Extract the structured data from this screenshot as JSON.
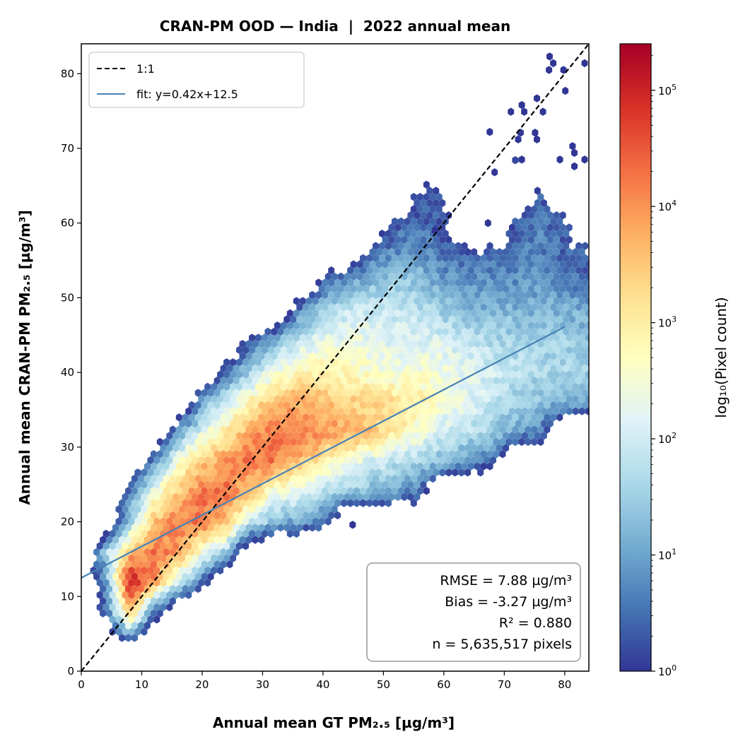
{
  "chart_data": {
    "type": "heatmap",
    "subtype": "hexbin",
    "title": "CRAN-PM OOD — India  |  2022 annual mean",
    "xlabel": "Annual mean GT PM₂.₅ [µg/m³]",
    "ylabel": "Annual mean CRAN-PM PM₂.₅ [µg/m³]",
    "xlim": [
      0,
      84
    ],
    "ylim": [
      0,
      84
    ],
    "xticks": [
      0,
      10,
      20,
      30,
      40,
      50,
      60,
      70,
      80
    ],
    "yticks": [
      0,
      10,
      20,
      30,
      40,
      50,
      60,
      70,
      80
    ],
    "grid": false,
    "colormap": [
      "#313695",
      "#4575b4",
      "#74add1",
      "#abd9e9",
      "#e0f3f8",
      "#ffffbf",
      "#fee090",
      "#fdae61",
      "#f46d43",
      "#d73027",
      "#a50026"
    ],
    "colorbar": {
      "label": "log₁₀(Pixel count)",
      "scale": "log",
      "range_log10": [
        0,
        5.4
      ],
      "tick_base": "10",
      "tick_exponents": [
        "0",
        "1",
        "2",
        "3",
        "4",
        "5"
      ]
    },
    "density_grid": {
      "description_units": "log10 pixel count at grid points (null = empty)",
      "x": [
        4,
        8,
        12,
        16,
        20,
        24,
        28,
        32,
        36,
        40,
        44,
        48,
        52,
        56,
        60,
        64,
        68,
        72,
        76,
        80,
        84
      ],
      "y": [
        4,
        8,
        12,
        16,
        20,
        24,
        28,
        32,
        36,
        40,
        44,
        48,
        52,
        56,
        60,
        64,
        68
      ],
      "log10_counts": [
        [
          null,
          0.3,
          null,
          null,
          null,
          null,
          null,
          null,
          null,
          null,
          null,
          null,
          null,
          null,
          null,
          null,
          null,
          null,
          null,
          null,
          null
        ],
        [
          0.5,
          3.8,
          0.6,
          null,
          null,
          null,
          null,
          null,
          null,
          null,
          null,
          null,
          null,
          null,
          null,
          null,
          null,
          null,
          null,
          null,
          null
        ],
        [
          0.8,
          5.2,
          4.0,
          2.0,
          0.5,
          null,
          null,
          null,
          null,
          null,
          null,
          null,
          null,
          null,
          null,
          null,
          null,
          null,
          null,
          null,
          null
        ],
        [
          1.5,
          3.5,
          4.3,
          4.0,
          2.5,
          1.5,
          null,
          null,
          null,
          null,
          null,
          null,
          null,
          null,
          null,
          null,
          null,
          null,
          null,
          null,
          null
        ],
        [
          null,
          1.5,
          3.5,
          4.2,
          4.3,
          3.5,
          2.0,
          1.2,
          1.0,
          0.5,
          null,
          null,
          null,
          null,
          null,
          null,
          null,
          null,
          null,
          null,
          null
        ],
        [
          null,
          0.5,
          2.5,
          3.5,
          4.2,
          4.3,
          3.5,
          2.5,
          2.2,
          1.8,
          1.5,
          1.2,
          1.0,
          0.5,
          null,
          null,
          null,
          null,
          null,
          null,
          null
        ],
        [
          null,
          null,
          0.8,
          2.5,
          3.5,
          4.0,
          4.3,
          4.2,
          3.6,
          3.0,
          2.5,
          2.0,
          1.8,
          1.5,
          1.2,
          0.8,
          0.4,
          null,
          null,
          null,
          null
        ],
        [
          null,
          null,
          null,
          1.0,
          2.2,
          3.0,
          3.8,
          4.3,
          4.3,
          4.0,
          3.8,
          3.5,
          3.0,
          2.5,
          2.0,
          1.8,
          1.5,
          1.0,
          0.6,
          null,
          null
        ],
        [
          null,
          null,
          null,
          null,
          1.0,
          2.0,
          3.0,
          3.6,
          3.8,
          3.6,
          3.4,
          3.3,
          3.2,
          3.0,
          2.5,
          2.2,
          1.8,
          1.5,
          1.3,
          1.2,
          1.0
        ],
        [
          null,
          null,
          null,
          null,
          null,
          0.6,
          1.5,
          2.5,
          2.8,
          3.0,
          2.8,
          2.6,
          2.5,
          2.5,
          2.4,
          2.2,
          2.0,
          1.8,
          1.6,
          1.6,
          1.5
        ],
        [
          null,
          null,
          null,
          null,
          null,
          null,
          0.5,
          1.2,
          2.0,
          2.3,
          2.4,
          2.3,
          2.2,
          2.2,
          2.1,
          1.9,
          1.7,
          1.6,
          1.6,
          1.5,
          1.4
        ],
        [
          null,
          null,
          null,
          null,
          null,
          null,
          null,
          null,
          0.8,
          1.5,
          1.9,
          2.0,
          1.9,
          1.8,
          1.5,
          1.3,
          1.2,
          1.2,
          1.2,
          1.2,
          1.0
        ],
        [
          null,
          null,
          null,
          null,
          null,
          null,
          null,
          null,
          null,
          0.4,
          1.0,
          1.3,
          1.5,
          1.3,
          1.0,
          0.8,
          0.8,
          0.8,
          0.9,
          0.7,
          0.5
        ],
        [
          null,
          null,
          null,
          null,
          null,
          null,
          null,
          null,
          null,
          null,
          null,
          0.5,
          0.8,
          0.9,
          0.5,
          0.3,
          0.4,
          0.6,
          0.7,
          0.4,
          0.3
        ],
        [
          null,
          null,
          null,
          null,
          null,
          null,
          null,
          null,
          null,
          null,
          null,
          null,
          0.3,
          0.5,
          0.2,
          null,
          null,
          0.3,
          0.6,
          0.3,
          null
        ],
        [
          null,
          null,
          null,
          null,
          null,
          null,
          null,
          null,
          null,
          null,
          null,
          null,
          null,
          0.2,
          0.2,
          null,
          null,
          null,
          0.3,
          null,
          null
        ],
        [
          null,
          null,
          null,
          null,
          null,
          null,
          null,
          null,
          null,
          null,
          null,
          null,
          null,
          null,
          null,
          null,
          null,
          0.1,
          null,
          null,
          null
        ]
      ]
    },
    "sparse_bins_count1": [
      [
        77.5,
        82.3
      ],
      [
        78.1,
        81.4
      ],
      [
        77.4,
        80.5
      ],
      [
        79.8,
        80.5
      ],
      [
        83.3,
        81.4
      ],
      [
        80.1,
        77.7
      ],
      [
        75.4,
        76.7
      ],
      [
        76.4,
        74.9
      ],
      [
        72.9,
        75.8
      ],
      [
        73.3,
        74.9
      ],
      [
        71.1,
        74.9
      ],
      [
        67.6,
        72.2
      ],
      [
        72.7,
        72.1
      ],
      [
        72.3,
        71.2
      ],
      [
        75.1,
        72.1
      ],
      [
        75.4,
        71.2
      ],
      [
        72.9,
        68.5
      ],
      [
        68.4,
        66.8
      ],
      [
        81.3,
        70.3
      ],
      [
        81.6,
        69.4
      ],
      [
        79.2,
        68.5
      ],
      [
        81.6,
        67.6
      ],
      [
        83.3,
        68.5
      ],
      [
        44.9,
        19.6
      ],
      [
        67.3,
        60.0
      ],
      [
        58.5,
        59.0
      ]
    ],
    "lines": [
      {
        "name": "1:1",
        "slope": 1,
        "intercept": 0,
        "style": "dashed",
        "color": "#000000",
        "x_range": [
          0,
          84
        ]
      },
      {
        "name": "fit",
        "slope": 0.42,
        "intercept": 12.5,
        "style": "solid",
        "color": "#4682b4",
        "x_range": [
          0,
          80
        ]
      }
    ],
    "legend": {
      "placement": "top-left",
      "entries": [
        "1:1",
        "fit: y=0.42x+12.5"
      ]
    },
    "stats_box": {
      "placement": "bottom-right",
      "lines": [
        "RMSE = 7.88 µg/m³",
        "Bias = -3.27 µg/m³",
        "R² = 0.880",
        "n = 5,635,517 pixels"
      ]
    }
  }
}
